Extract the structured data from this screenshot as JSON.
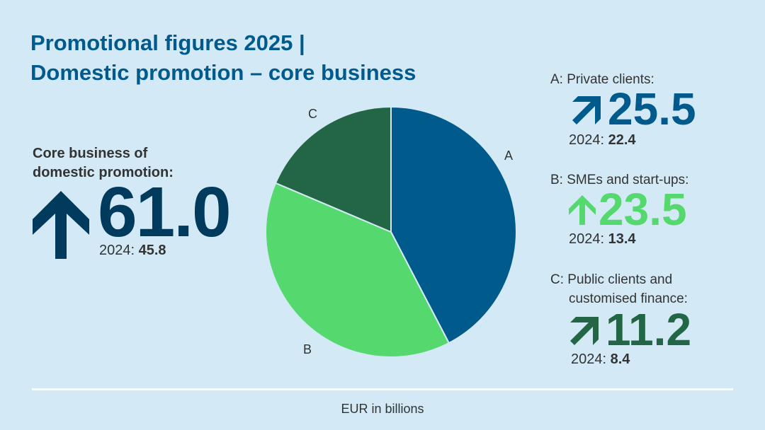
{
  "title": {
    "line1": "Promotional figures  2025 |",
    "line2": "Domestic promotion – core business"
  },
  "core": {
    "label_line1": "Core business of",
    "label_line2": "domestic promotion:",
    "value": "61.0",
    "prev_label": "2024: ",
    "prev_value": "45.8",
    "trend": "up",
    "color": "#003a5d"
  },
  "segments": [
    {
      "label": "A: Private clients:",
      "label2": "",
      "value": "25.5",
      "prev_label": "2024: ",
      "prev_value": "22.4",
      "trend": "up-right",
      "color": "#005a8c"
    },
    {
      "label": "B: SMEs and start-ups:",
      "label2": "",
      "value": "23.5",
      "prev_label": "2024: ",
      "prev_value": "13.4",
      "trend": "up",
      "color": "#55d96e"
    },
    {
      "label": "C: Public clients and",
      "label2": "customised finance:",
      "value": "11.2",
      "prev_label": "2024: ",
      "prev_value": "8.4",
      "trend": "up-right",
      "color": "#236645"
    }
  ],
  "chart_data": {
    "type": "pie",
    "categories": [
      "A",
      "B",
      "C"
    ],
    "values": [
      25.5,
      23.5,
      11.2
    ],
    "colors": [
      "#005a8c",
      "#55d96e",
      "#236645"
    ],
    "start": "top",
    "direction": "clockwise"
  },
  "footer": {
    "unit": "EUR in billions"
  }
}
